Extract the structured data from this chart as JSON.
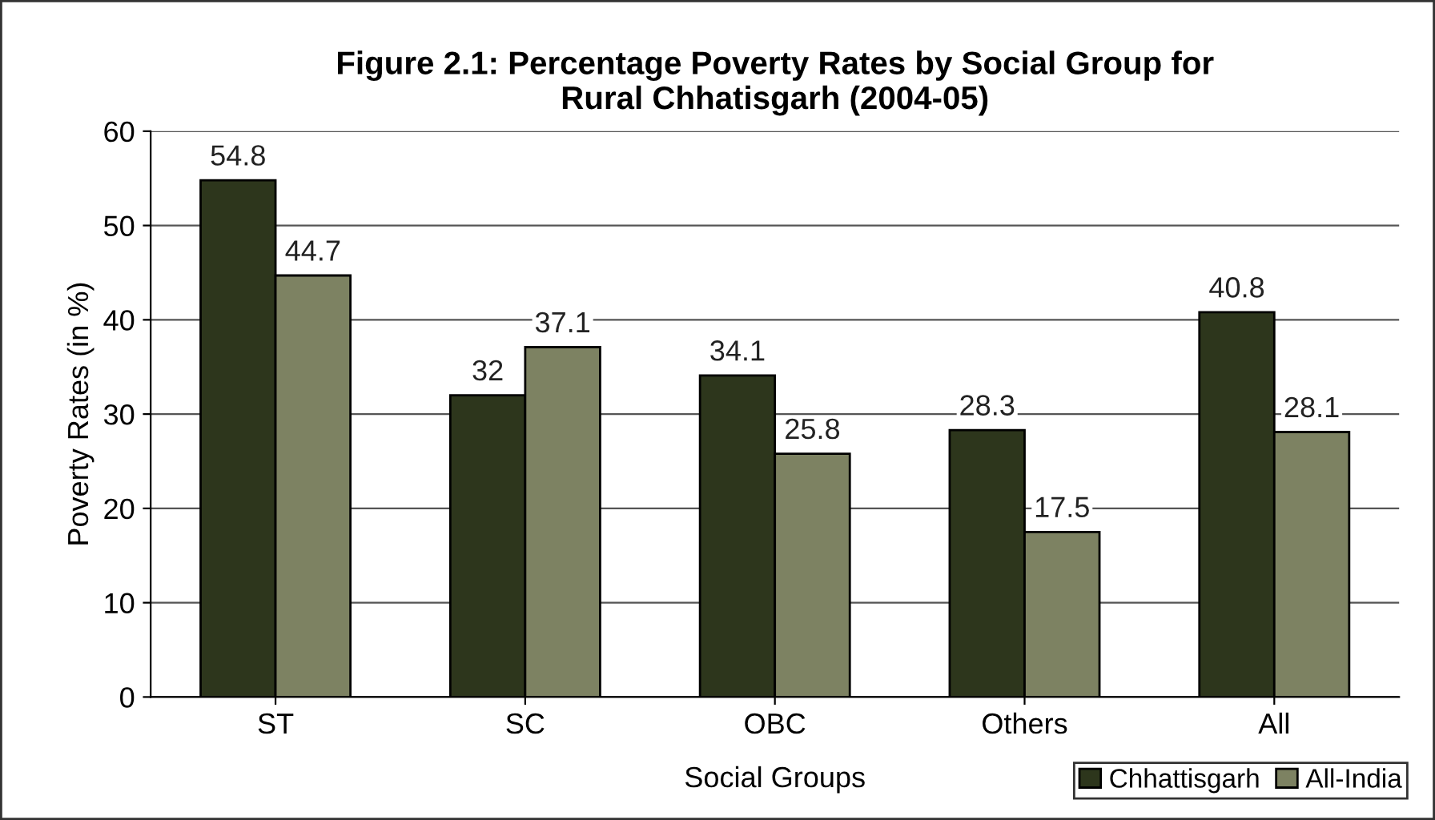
{
  "chart_data": {
    "type": "bar",
    "title": "Figure 2.1: Percentage Poverty Rates by Social Group for\nRural Chhatisgarh (2004-05)",
    "xlabel": "Social Groups",
    "ylabel": "Poverty Rates (in %)",
    "categories": [
      "ST",
      "SC",
      "OBC",
      "Others",
      "All"
    ],
    "series": [
      {
        "name": "Chhattisgarh",
        "color": "#2d361c",
        "values": [
          54.8,
          32,
          34.1,
          28.3,
          40.8
        ]
      },
      {
        "name": "All-India",
        "color": "#7d8262",
        "values": [
          44.7,
          37.1,
          25.8,
          17.5,
          28.1
        ]
      }
    ],
    "ylim": [
      0,
      60
    ],
    "yticks": [
      0,
      10,
      20,
      30,
      40,
      50,
      60
    ],
    "grid": "y",
    "data_labels": true,
    "legend": "bottom right"
  }
}
